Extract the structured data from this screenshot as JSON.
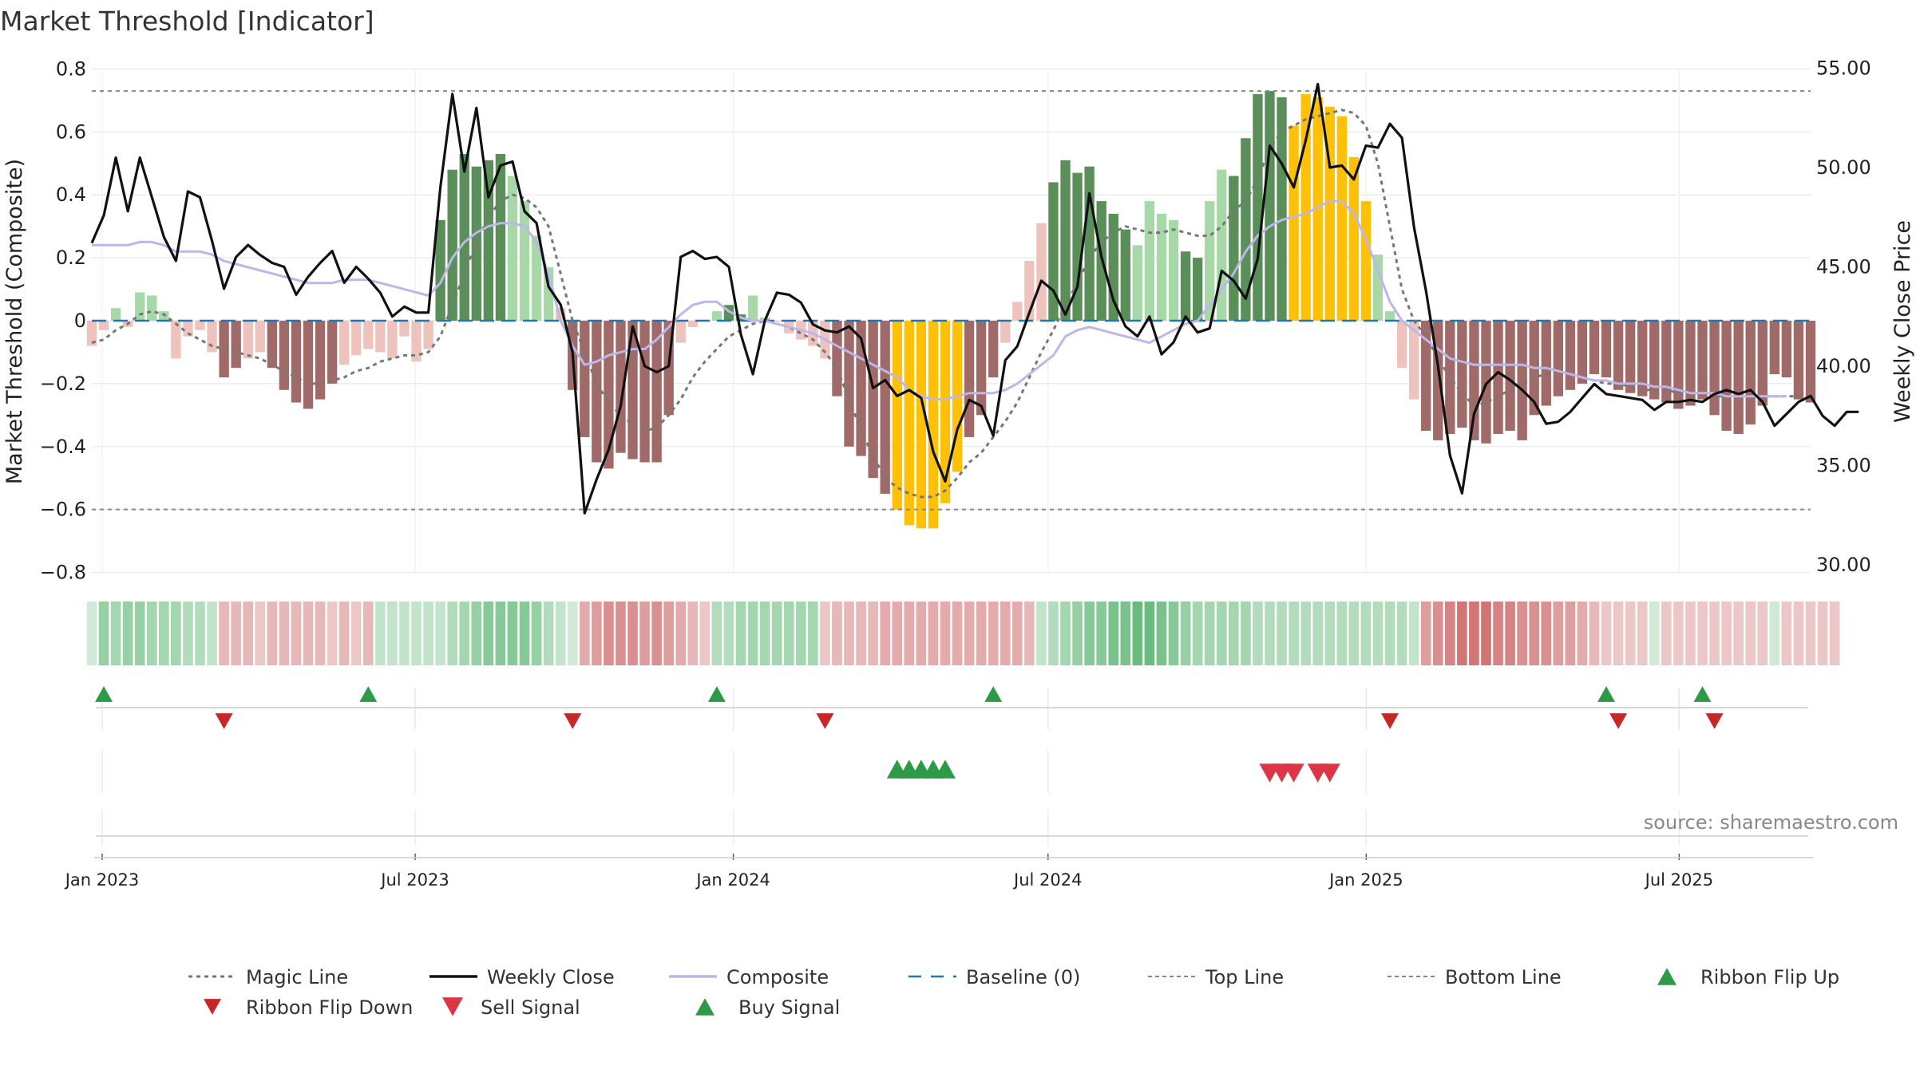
{
  "chart_data": {
    "type": "bar+line",
    "title": "Market Threshold [Indicator]",
    "ylabel_left": "Market Threshold (Composite)",
    "ylabel_right": "Weekly Close Price",
    "ylim_left": [
      -0.8,
      0.8
    ],
    "ylim_right": [
      29.0,
      55.5
    ],
    "yticks_left": [
      "0.8",
      "0.6",
      "0.4",
      "0.2",
      "0",
      "−0.2",
      "−0.4",
      "−0.6",
      "−0.8"
    ],
    "yticks_right": [
      "55.00",
      "50.00",
      "45.00",
      "40.00",
      "35.00",
      "30.00"
    ],
    "x_range": [
      "2022-12-26",
      "2025-09-15"
    ],
    "xticks": [
      "Jan 2023",
      "Jul 2023",
      "Jan 2024",
      "Jul 2024",
      "Jan 2025",
      "Jul 2025"
    ],
    "top_line": 0.73,
    "bottom_line": -0.6,
    "baseline": 0,
    "source": "source: sharemaestro.com",
    "colors": {
      "dark_green": "#5a8f5a",
      "light_green": "#a8d8a8",
      "gold": "#ffc107",
      "dark_red": "#a06a68",
      "light_red": "#efc3bd",
      "composite": "#bdb6e8",
      "close": "#111111",
      "magic": "#777777",
      "baseline": "#1f77b4",
      "buy": "#2e9a48",
      "sell": "#dc3545"
    },
    "bars": [
      -0.08,
      -0.03,
      0.04,
      -0.02,
      0.09,
      0.08,
      0.03,
      -0.12,
      -0.05,
      -0.03,
      -0.1,
      -0.18,
      -0.15,
      -0.12,
      -0.1,
      -0.15,
      -0.22,
      -0.26,
      -0.28,
      -0.25,
      -0.2,
      -0.14,
      -0.11,
      -0.09,
      -0.1,
      -0.12,
      -0.05,
      -0.13,
      -0.09,
      0.32,
      0.48,
      0.53,
      0.49,
      0.51,
      0.53,
      0.46,
      0.38,
      0.27,
      0.17,
      0.04,
      -0.22,
      -0.37,
      -0.45,
      -0.47,
      -0.42,
      -0.44,
      -0.45,
      -0.45,
      -0.3,
      -0.07,
      -0.02,
      0.0,
      0.03,
      0.05,
      0.02,
      0.08,
      0.01,
      0.0,
      -0.04,
      -0.06,
      -0.08,
      -0.12,
      -0.24,
      -0.4,
      -0.43,
      -0.5,
      -0.55,
      -0.6,
      -0.65,
      -0.66,
      -0.66,
      -0.58,
      -0.48,
      -0.37,
      -0.3,
      -0.18,
      -0.07,
      0.06,
      0.19,
      0.31,
      0.44,
      0.51,
      0.47,
      0.49,
      0.38,
      0.34,
      0.29,
      0.24,
      0.38,
      0.34,
      0.32,
      0.22,
      0.2,
      0.38,
      0.48,
      0.46,
      0.58,
      0.72,
      0.73,
      0.71,
      0.62,
      0.72,
      0.71,
      0.68,
      0.65,
      0.52,
      0.38,
      0.21,
      0.03,
      -0.15,
      -0.25,
      -0.35,
      -0.38,
      -0.36,
      -0.34,
      -0.38,
      -0.39,
      -0.36,
      -0.35,
      -0.38,
      -0.3,
      -0.27,
      -0.24,
      -0.22,
      -0.2,
      -0.17,
      -0.18,
      -0.22,
      -0.23,
      -0.24,
      -0.25,
      -0.26,
      -0.28,
      -0.27,
      -0.25,
      -0.3,
      -0.35,
      -0.36,
      -0.33,
      -0.27,
      -0.17,
      -0.18,
      -0.25,
      -0.26
    ],
    "bar_colors": "LLLLLLLLLRRRRRRRRRRRRRRRRRRRRGGGGGGLLLLRRRRRRRRRRLLLLGGLLRRRRRRRRRRYYYYYYRRRRRRRGGGGGGGLLLLGGLLGGGGGYYYYYYYLLLLRRRRRRRRRRRRRRRRRRRRRRRRRRRRRRRRRRRRRRRRR",
    "composite": [
      0.24,
      0.24,
      0.24,
      0.24,
      0.25,
      0.25,
      0.24,
      0.22,
      0.22,
      0.22,
      0.21,
      0.19,
      0.18,
      0.17,
      0.16,
      0.15,
      0.14,
      0.13,
      0.12,
      0.12,
      0.12,
      0.13,
      0.13,
      0.13,
      0.12,
      0.11,
      0.1,
      0.09,
      0.08,
      0.12,
      0.2,
      0.25,
      0.28,
      0.3,
      0.31,
      0.31,
      0.3,
      0.25,
      0.15,
      0.0,
      -0.08,
      -0.14,
      -0.13,
      -0.11,
      -0.1,
      -0.09,
      -0.09,
      -0.06,
      -0.02,
      0.02,
      0.05,
      0.06,
      0.06,
      0.03,
      0.01,
      0.0,
      0.0,
      -0.01,
      -0.02,
      -0.03,
      -0.04,
      -0.06,
      -0.08,
      -0.1,
      -0.12,
      -0.14,
      -0.16,
      -0.18,
      -0.22,
      -0.24,
      -0.25,
      -0.25,
      -0.24,
      -0.23,
      -0.23,
      -0.23,
      -0.22,
      -0.2,
      -0.17,
      -0.14,
      -0.11,
      -0.05,
      -0.03,
      -0.02,
      -0.03,
      -0.04,
      -0.05,
      -0.06,
      -0.07,
      -0.05,
      -0.03,
      -0.01,
      0.0,
      0.05,
      0.1,
      0.15,
      0.22,
      0.27,
      0.3,
      0.32,
      0.33,
      0.34,
      0.36,
      0.38,
      0.38,
      0.34,
      0.26,
      0.16,
      0.06,
      0.0,
      -0.03,
      -0.06,
      -0.09,
      -0.12,
      -0.13,
      -0.14,
      -0.14,
      -0.14,
      -0.14,
      -0.14,
      -0.15,
      -0.15,
      -0.16,
      -0.17,
      -0.18,
      -0.19,
      -0.19,
      -0.2,
      -0.2,
      -0.2,
      -0.21,
      -0.21,
      -0.22,
      -0.23,
      -0.23,
      -0.23,
      -0.24,
      -0.24,
      -0.24,
      -0.24,
      -0.24,
      -0.24
    ],
    "magic_line": [
      -0.07,
      -0.06,
      -0.03,
      -0.01,
      0.02,
      0.03,
      0.02,
      -0.01,
      -0.04,
      -0.06,
      -0.08,
      -0.09,
      -0.1,
      -0.11,
      -0.12,
      -0.14,
      -0.16,
      -0.18,
      -0.2,
      -0.2,
      -0.19,
      -0.18,
      -0.16,
      -0.15,
      -0.13,
      -0.12,
      -0.11,
      -0.11,
      -0.1,
      -0.05,
      0.05,
      0.15,
      0.25,
      0.33,
      0.38,
      0.4,
      0.39,
      0.36,
      0.3,
      0.15,
      0.0,
      -0.1,
      -0.2,
      -0.26,
      -0.3,
      -0.33,
      -0.35,
      -0.34,
      -0.3,
      -0.25,
      -0.18,
      -0.13,
      -0.09,
      -0.05,
      -0.03,
      -0.01,
      0.0,
      -0.01,
      -0.02,
      -0.04,
      -0.06,
      -0.1,
      -0.15,
      -0.25,
      -0.35,
      -0.43,
      -0.5,
      -0.53,
      -0.55,
      -0.56,
      -0.56,
      -0.54,
      -0.5,
      -0.45,
      -0.42,
      -0.37,
      -0.32,
      -0.26,
      -0.18,
      -0.1,
      -0.03,
      0.05,
      0.12,
      0.2,
      0.25,
      0.28,
      0.3,
      0.29,
      0.28,
      0.28,
      0.29,
      0.28,
      0.27,
      0.27,
      0.3,
      0.35,
      0.38,
      0.45,
      0.55,
      0.6,
      0.62,
      0.64,
      0.65,
      0.66,
      0.67,
      0.66,
      0.62,
      0.5,
      0.3,
      0.1,
      0.0,
      -0.05,
      -0.12,
      -0.18,
      -0.23,
      -0.27,
      -0.26,
      -0.24,
      -0.22,
      -0.2,
      -0.18,
      -0.17,
      -0.16,
      -0.17,
      -0.18,
      -0.19,
      -0.2,
      -0.2,
      -0.21,
      -0.22,
      -0.22,
      -0.22,
      -0.23,
      -0.23,
      -0.23,
      -0.24,
      -0.24,
      -0.24,
      -0.24,
      -0.24,
      -0.24,
      -0.24,
      -0.24
    ],
    "weekly_close": [
      46.2,
      47.6,
      50.5,
      47.8,
      50.5,
      48.5,
      46.5,
      45.3,
      48.8,
      48.5,
      46.3,
      43.9,
      45.5,
      46.1,
      45.6,
      45.2,
      45.0,
      43.6,
      44.5,
      45.2,
      45.8,
      44.2,
      45.0,
      44.4,
      43.7,
      42.5,
      43.0,
      42.7,
      42.7,
      49.0,
      53.7,
      49.8,
      53.0,
      48.5,
      50.1,
      50.3,
      47.8,
      47.2,
      44.0,
      43.1,
      40.7,
      32.6,
      34.3,
      35.8,
      38.0,
      42.0,
      40.0,
      39.7,
      40.0,
      45.5,
      45.8,
      45.4,
      45.5,
      45.0,
      41.6,
      39.6,
      42.3,
      43.7,
      43.6,
      43.2,
      42.1,
      41.8,
      41.7,
      42.0,
      41.4,
      38.9,
      39.3,
      38.5,
      38.8,
      38.4,
      35.7,
      34.2,
      36.8,
      38.3,
      38.0,
      36.5,
      40.3,
      41.0,
      42.7,
      44.3,
      43.8,
      42.6,
      44.0,
      48.7,
      45.5,
      43.3,
      42.0,
      41.5,
      42.5,
      40.6,
      41.2,
      42.5,
      41.7,
      41.9,
      44.8,
      44.3,
      43.4,
      45.4,
      51.1,
      50.2,
      49.0,
      51.4,
      54.2,
      50.0,
      50.1,
      49.4,
      51.1,
      51.0,
      52.2,
      51.5,
      47.0,
      43.8,
      40.0,
      35.5,
      33.6,
      37.6,
      39.1,
      39.7,
      39.3,
      38.8,
      38.2,
      37.1,
      37.2,
      37.7,
      38.4,
      39.1,
      38.6,
      38.5,
      38.4,
      38.3,
      37.8,
      38.2,
      38.2,
      38.3,
      38.2,
      38.6,
      38.8,
      38.6,
      38.8,
      38.2,
      37.0,
      37.6,
      38.2,
      38.5,
      37.5,
      37.0,
      37.7,
      37.7
    ],
    "ribbon": [
      0.1,
      0.5,
      0.4,
      0.5,
      0.5,
      0.4,
      0.4,
      0.4,
      0.3,
      0.3,
      0.2,
      -0.3,
      -0.3,
      -0.3,
      -0.2,
      -0.3,
      -0.3,
      -0.3,
      -0.3,
      -0.3,
      -0.2,
      -0.3,
      -0.2,
      -0.3,
      0.2,
      0.2,
      0.2,
      0.2,
      0.2,
      0.2,
      0.3,
      0.4,
      0.5,
      0.6,
      0.6,
      0.6,
      0.6,
      0.5,
      0.3,
      0.2,
      0.1,
      -0.4,
      -0.5,
      -0.6,
      -0.6,
      -0.6,
      -0.5,
      -0.6,
      -0.5,
      -0.4,
      -0.3,
      -0.2,
      0.3,
      0.3,
      0.4,
      0.4,
      0.4,
      0.4,
      0.4,
      0.4,
      0.4,
      -0.2,
      -0.3,
      -0.3,
      -0.3,
      -0.3,
      -0.4,
      -0.4,
      -0.4,
      -0.4,
      -0.4,
      -0.4,
      -0.4,
      -0.4,
      -0.4,
      -0.4,
      -0.4,
      -0.4,
      -0.3,
      0.2,
      0.3,
      0.4,
      0.5,
      0.6,
      0.6,
      0.7,
      0.7,
      0.8,
      0.8,
      0.7,
      0.6,
      0.5,
      0.4,
      0.4,
      0.4,
      0.4,
      0.4,
      0.3,
      0.3,
      0.3,
      0.3,
      0.3,
      0.3,
      0.3,
      0.3,
      0.3,
      0.3,
      0.3,
      0.3,
      0.3,
      0.2,
      -0.5,
      -0.6,
      -0.7,
      -0.8,
      -0.8,
      -0.8,
      -0.7,
      -0.7,
      -0.6,
      -0.6,
      -0.6,
      -0.5,
      -0.5,
      -0.4,
      -0.3,
      -0.2,
      -0.2,
      -0.2,
      -0.2,
      0.1,
      -0.2,
      -0.2,
      -0.2,
      -0.2,
      -0.2,
      -0.2,
      -0.2,
      -0.2,
      -0.2,
      0.1,
      -0.2,
      -0.2,
      -0.2,
      -0.2,
      -0.2
    ],
    "ribbon_flip_up": [
      1,
      23,
      52,
      75,
      126,
      134
    ],
    "ribbon_flip_down": [
      11,
      40,
      61,
      108,
      127,
      135
    ],
    "buy_signals": [
      67,
      68,
      69,
      70,
      71
    ],
    "sell_signals": [
      98,
      99,
      100,
      102,
      103
    ],
    "legend": [
      {
        "label": "Magic Line",
        "style": "dotted"
      },
      {
        "label": "Weekly Close",
        "style": "solid-black"
      },
      {
        "label": "Composite",
        "style": "solid-purple"
      },
      {
        "label": "Baseline (0)",
        "style": "dashed-blue"
      },
      {
        "label": "Top Line",
        "style": "dotted-gray"
      },
      {
        "label": "Bottom Line",
        "style": "dotted-gray"
      },
      {
        "label": "Ribbon Flip Up",
        "style": "triangle-up-green"
      },
      {
        "label": "Ribbon Flip Down",
        "style": "triangle-down-darkred"
      },
      {
        "label": "Sell Signal",
        "style": "triangle-down-red"
      },
      {
        "label": "Buy Signal",
        "style": "triangle-up-green"
      }
    ]
  }
}
